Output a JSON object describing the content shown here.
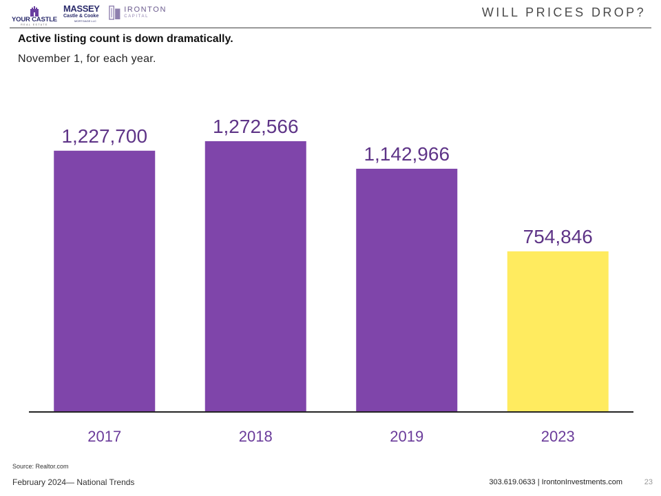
{
  "header": {
    "logos": {
      "your_castle": {
        "name": "YOUR CASTLE",
        "sub": "REAL ESTATE"
      },
      "massey": {
        "line1": "MASSEY",
        "line2": "Castle & Cooke",
        "line3": "MORTGAGE LLC"
      },
      "ironton": {
        "line1": "IRONTON",
        "line2": "CAPITAL"
      }
    },
    "title": "WILL PRICES DROP?"
  },
  "subtitle": "Active listing count is down dramatically.",
  "note": "November 1, for each year.",
  "colors": {
    "purple": "#7F45AA",
    "yellow": "#FFEB5F",
    "label": "#5E3487",
    "axis_text": "#6A3B9A"
  },
  "chart_data": {
    "type": "bar",
    "categories": [
      "2017",
      "2018",
      "2019",
      "2023"
    ],
    "values": [
      1227700,
      1272566,
      1142966,
      754846
    ],
    "data_labels": [
      "1,227,700",
      "1,272,566",
      "1,142,966",
      "754,846"
    ],
    "bar_colors": [
      "#7F45AA",
      "#7F45AA",
      "#7F45AA",
      "#FFEB5F"
    ],
    "title": "",
    "xlabel": "",
    "ylabel": "",
    "ylim": [
      0,
      1350000
    ],
    "grid": false,
    "legend": "none"
  },
  "footer": {
    "source": "Source: Realtor.com",
    "left": "February 2024— National Trends",
    "right": "303.619.0633 | IrontonInvestments.com",
    "page": "23"
  }
}
